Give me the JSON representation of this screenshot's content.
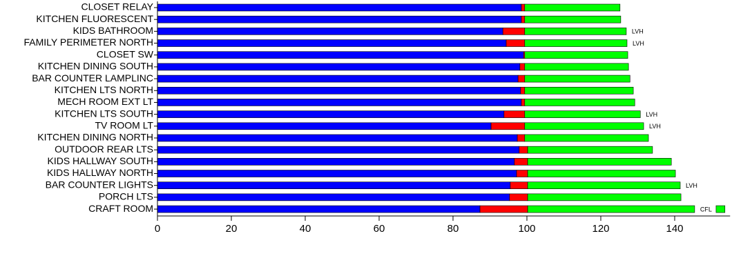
{
  "chart_data": {
    "type": "stacked-bar-horizontal",
    "categories": [
      "CLOSET RELAY",
      "KITCHEN FLUORESCENT",
      "KIDS BATHROOM",
      "FAMILY PERIMETER NORTH",
      "CLOSET SW",
      "KITCHEN DINING SOUTH",
      "BAR COUNTER LAMPLINC",
      "KITCHEN LTS NORTH",
      "MECH ROOM EXT LT",
      "KITCHEN LTS SOUTH",
      "TV ROOM LT",
      "KITCHEN DINING NORTH",
      "OUTDOOR REAR LTS",
      "KIDS HALLWAY SOUTH",
      "KIDS HALLWAY NORTH",
      "BAR COUNTER LIGHTS",
      "PORCH LTS",
      "CRAFT ROOM"
    ],
    "series": [
      {
        "color": "#0000ff",
        "values": [
          98.5,
          98.5,
          93.5,
          94.4,
          99.1,
          98.1,
          97.6,
          98.3,
          98.5,
          93.8,
          90.3,
          97.4,
          97.9,
          96.6,
          97.2,
          95.5,
          95.3,
          87.3
        ]
      },
      {
        "color": "#ff0000",
        "values": [
          0.9,
          0.9,
          5.9,
          5.0,
          0.3,
          1.3,
          1.8,
          1.1,
          0.9,
          5.6,
          9.1,
          2.0,
          2.3,
          3.6,
          3.0,
          4.7,
          4.9,
          12.9
        ]
      },
      {
        "color": "#00ff00",
        "values": [
          25.8,
          26.0,
          27.5,
          27.7,
          27.9,
          28.1,
          28.5,
          29.4,
          29.8,
          31.3,
          32.2,
          33.5,
          33.8,
          38.9,
          40.0,
          41.3,
          41.5,
          45.2
        ]
      },
      {
        "color": "transparent",
        "values": [
          null,
          null,
          null,
          null,
          null,
          null,
          null,
          null,
          null,
          null,
          null,
          null,
          null,
          null,
          null,
          null,
          null,
          5.8
        ]
      },
      {
        "color": "#00ff00",
        "values": [
          null,
          null,
          null,
          null,
          null,
          null,
          null,
          null,
          null,
          null,
          null,
          null,
          null,
          null,
          null,
          null,
          null,
          2.4
        ]
      }
    ],
    "notes": [
      null,
      null,
      "LVH",
      "LVH",
      null,
      null,
      null,
      null,
      null,
      "LVH",
      "LVH",
      null,
      null,
      null,
      null,
      "LVH",
      null,
      "CFL"
    ],
    "xlim": [
      0,
      155
    ],
    "xticks": [
      0,
      20,
      40,
      60,
      80,
      100,
      120,
      140
    ]
  }
}
